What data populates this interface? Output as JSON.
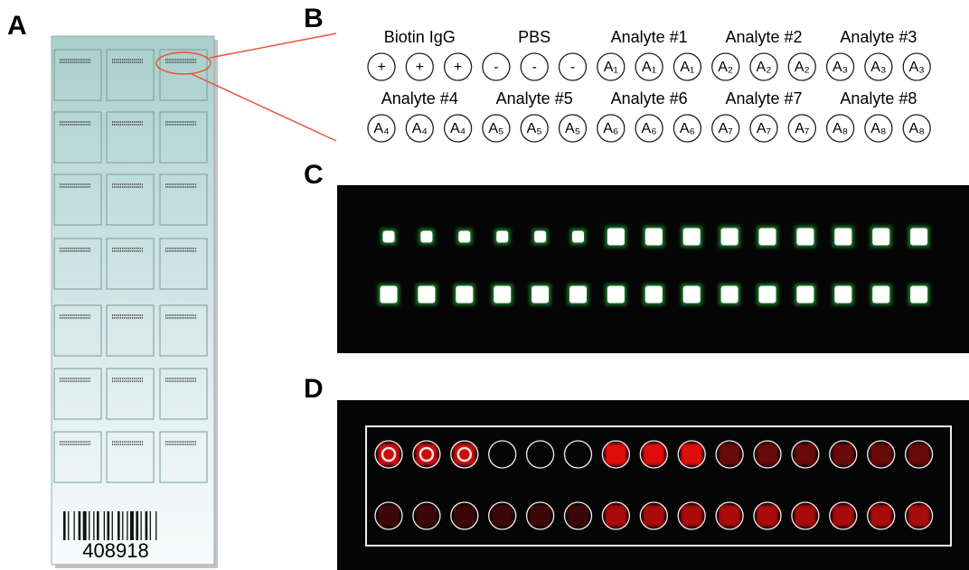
{
  "panels": {
    "a": {
      "label": "A",
      "barcode": "408918"
    },
    "b": {
      "label": "B",
      "rows": [
        {
          "groups": [
            {
              "name": "Biotin IgG",
              "spots": [
                "+",
                "+",
                "+"
              ]
            },
            {
              "name": "PBS",
              "spots": [
                "-",
                "-",
                "-"
              ]
            },
            {
              "name": "Analyte #1",
              "spots": [
                "A₁",
                "A₁",
                "A₁"
              ]
            },
            {
              "name": "Analyte #2",
              "spots": [
                "A₂",
                "A₂",
                "A₂"
              ]
            },
            {
              "name": "Analyte #3",
              "spots": [
                "A₃",
                "A₃",
                "A₃"
              ]
            }
          ]
        },
        {
          "groups": [
            {
              "name": "Analyte #4",
              "spots": [
                "A₄",
                "A₄",
                "A₄"
              ]
            },
            {
              "name": "Analyte #5",
              "spots": [
                "A₅",
                "A₅",
                "A₅"
              ]
            },
            {
              "name": "Analyte #6",
              "spots": [
                "A₆",
                "A₆",
                "A₆"
              ]
            },
            {
              "name": "Analyte #7",
              "spots": [
                "A₇",
                "A₇",
                "A₇"
              ]
            },
            {
              "name": "Analyte #8",
              "spots": [
                "A₈",
                "A₈",
                "A₈"
              ]
            }
          ]
        }
      ]
    },
    "c": {
      "label": "C"
    },
    "d": {
      "label": "D"
    }
  }
}
